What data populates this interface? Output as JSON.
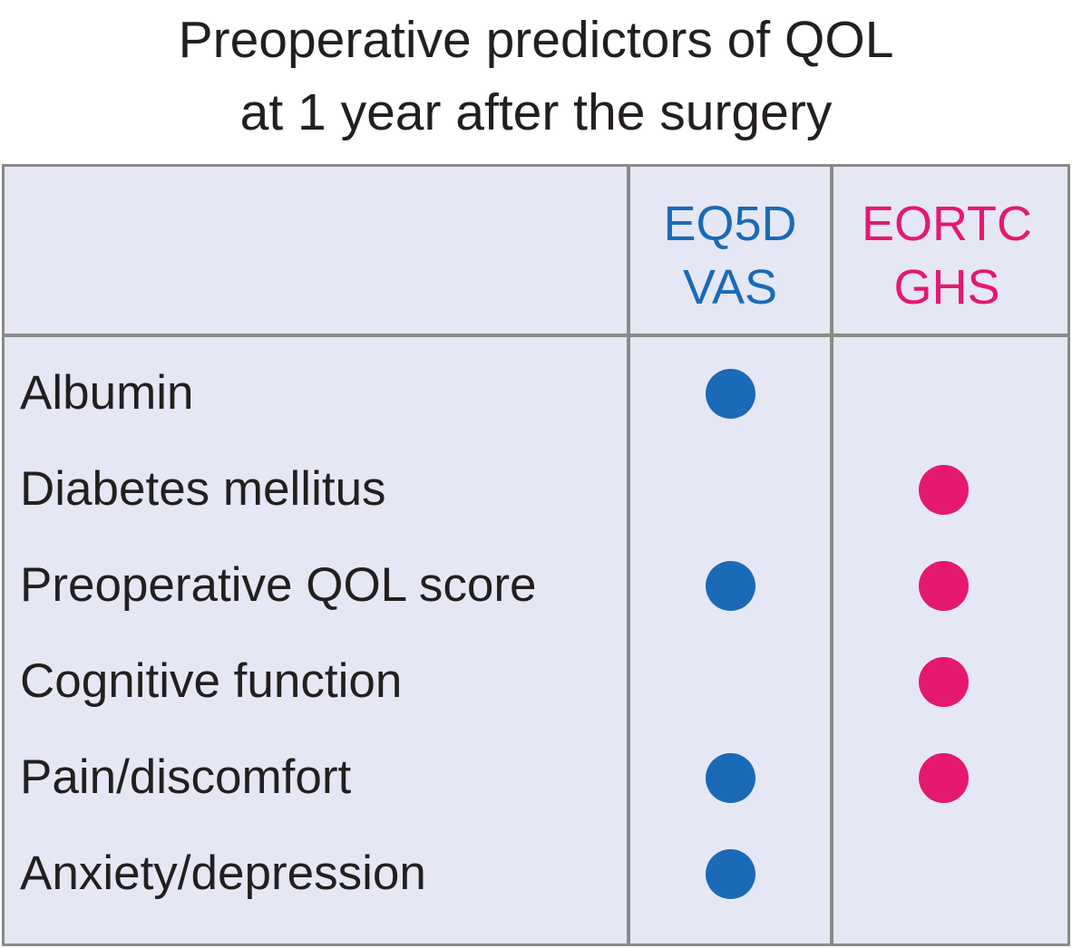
{
  "title": {
    "line1": "Preoperative predictors of QOL",
    "line2": "at 1 year after the surgery"
  },
  "columns": [
    {
      "line1": "EQ5D",
      "line2": "VAS",
      "color": "#1a6ab8"
    },
    {
      "line1": "EORTC",
      "line2": "GHS",
      "color": "#e5186f"
    }
  ],
  "rows": [
    {
      "label": "Albumin",
      "eq5d_vas": true,
      "eortc_ghs": false
    },
    {
      "label": "Diabetes mellitus",
      "eq5d_vas": false,
      "eortc_ghs": true
    },
    {
      "label": "Preoperative QOL score",
      "eq5d_vas": true,
      "eortc_ghs": true
    },
    {
      "label": "Cognitive function",
      "eq5d_vas": false,
      "eortc_ghs": true
    },
    {
      "label": "Pain/discomfort",
      "eq5d_vas": true,
      "eortc_ghs": true
    },
    {
      "label": "Anxiety/depression",
      "eq5d_vas": true,
      "eortc_ghs": false
    }
  ]
}
